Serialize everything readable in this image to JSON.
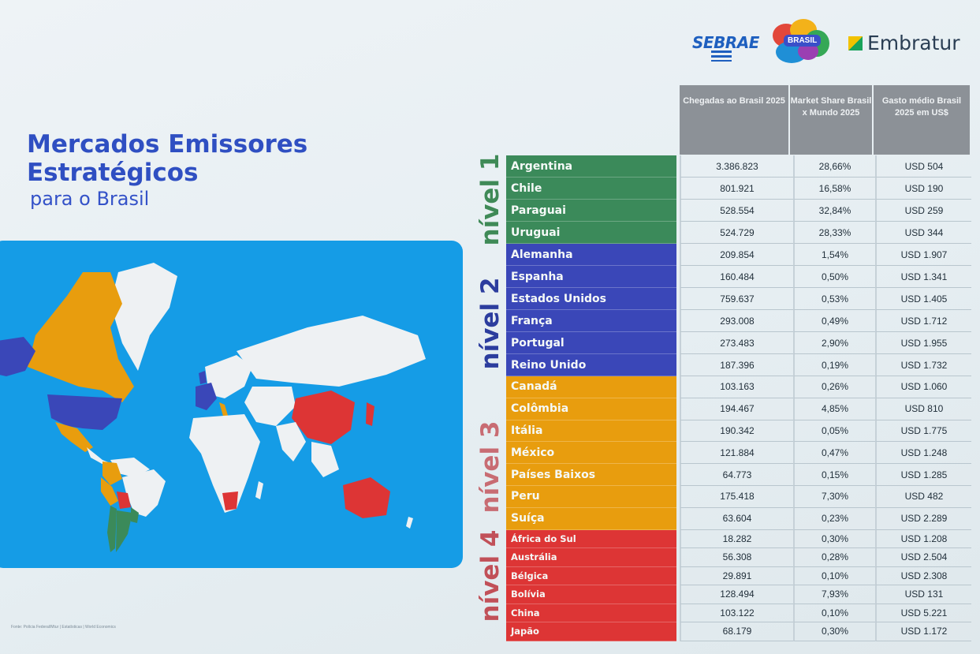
{
  "brand": {
    "sebrae": "SEBRAE",
    "brasil": "BRASIL",
    "embratur": "Embratur"
  },
  "title": {
    "line1": "Mercados Emissores",
    "line2": "Estratégicos",
    "line3": "para o Brasil"
  },
  "source_note": "Fonte: Polícia Federal/Mtur | Estatísticas | World Economics",
  "levels": [
    "nível 1",
    "nível 2",
    "nível 3",
    "nível 4"
  ],
  "colors": {
    "level1": "#3b8a5a",
    "level2": "#3a47b8",
    "level3": "#e89d0e",
    "level4": "#dd3535",
    "map_ocean": "#159ce6",
    "header_bg": "#8c9197"
  },
  "table": {
    "columns": [
      "Chegadas ao Brasil 2025",
      "Market Share Brasil x Mundo 2025",
      "Gasto médio Brasil 2025 em US$"
    ],
    "rows": [
      {
        "country": "Argentina",
        "level": 1,
        "arrivals": "3.386.823",
        "share": "28,66%",
        "spend": "USD 504"
      },
      {
        "country": "Chile",
        "level": 1,
        "arrivals": "801.921",
        "share": "16,58%",
        "spend": "USD 190"
      },
      {
        "country": "Paraguai",
        "level": 1,
        "arrivals": "528.554",
        "share": "32,84%",
        "spend": "USD 259"
      },
      {
        "country": "Uruguai",
        "level": 1,
        "arrivals": "524.729",
        "share": "28,33%",
        "spend": "USD 344"
      },
      {
        "country": "Alemanha",
        "level": 2,
        "arrivals": "209.854",
        "share": "1,54%",
        "spend": "USD 1.907"
      },
      {
        "country": "Espanha",
        "level": 2,
        "arrivals": "160.484",
        "share": "0,50%",
        "spend": "USD 1.341"
      },
      {
        "country": "Estados Unidos",
        "level": 2,
        "arrivals": "759.637",
        "share": "0,53%",
        "spend": "USD 1.405"
      },
      {
        "country": "França",
        "level": 2,
        "arrivals": "293.008",
        "share": "0,49%",
        "spend": "USD 1.712"
      },
      {
        "country": "Portugal",
        "level": 2,
        "arrivals": "273.483",
        "share": "2,90%",
        "spend": "USD 1.955"
      },
      {
        "country": "Reino Unido",
        "level": 2,
        "arrivals": "187.396",
        "share": "0,19%",
        "spend": "USD 1.732"
      },
      {
        "country": "Canadá",
        "level": 3,
        "arrivals": "103.163",
        "share": "0,26%",
        "spend": "USD 1.060"
      },
      {
        "country": "Colômbia",
        "level": 3,
        "arrivals": "194.467",
        "share": "4,85%",
        "spend": "USD 810"
      },
      {
        "country": "Itália",
        "level": 3,
        "arrivals": "190.342",
        "share": "0,05%",
        "spend": "USD 1.775"
      },
      {
        "country": "México",
        "level": 3,
        "arrivals": "121.884",
        "share": "0,47%",
        "spend": "USD 1.248"
      },
      {
        "country": "Países Baixos",
        "level": 3,
        "arrivals": "64.773",
        "share": "0,15%",
        "spend": "USD 1.285"
      },
      {
        "country": "Peru",
        "level": 3,
        "arrivals": "175.418",
        "share": "7,30%",
        "spend": "USD 482"
      },
      {
        "country": "Suíça",
        "level": 3,
        "arrivals": "63.604",
        "share": "0,23%",
        "spend": "USD 2.289"
      },
      {
        "country": "África do Sul",
        "level": 4,
        "arrivals": "18.282",
        "share": "0,30%",
        "spend": "USD 1.208"
      },
      {
        "country": "Austrália",
        "level": 4,
        "arrivals": "56.308",
        "share": "0,28%",
        "spend": "USD 2.504"
      },
      {
        "country": "Bélgica",
        "level": 4,
        "arrivals": "29.891",
        "share": "0,10%",
        "spend": "USD 2.308"
      },
      {
        "country": "Bolívia",
        "level": 4,
        "arrivals": "128.494",
        "share": "7,93%",
        "spend": "USD 131"
      },
      {
        "country": "China",
        "level": 4,
        "arrivals": "103.122",
        "share": "0,10%",
        "spend": "USD 5.221"
      },
      {
        "country": "Japão",
        "level": 4,
        "arrivals": "68.179",
        "share": "0,30%",
        "spend": "USD 1.172"
      }
    ]
  }
}
